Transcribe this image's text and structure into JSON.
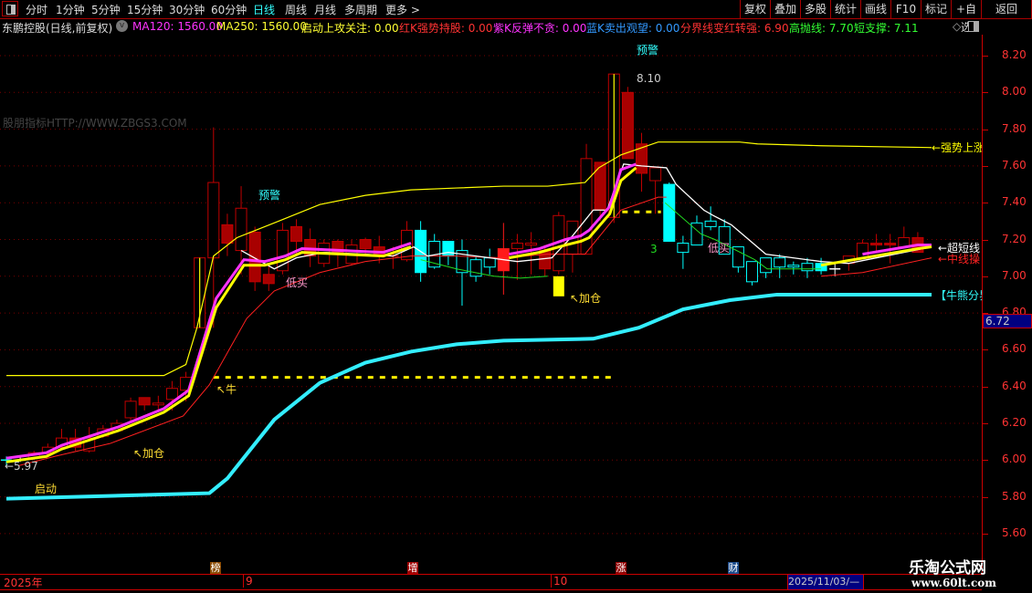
{
  "toolbar": {
    "tabs": [
      "分时",
      "1分钟",
      "5分钟",
      "15分钟",
      "30分钟",
      "60分钟",
      "日线",
      "周线",
      "月线",
      "多周期",
      "更多 >"
    ],
    "active_tab": "日线",
    "right_buttons": [
      "复权",
      "叠加",
      "多股",
      "统计",
      "画线",
      "F10",
      "标记",
      "+自选",
      "返回"
    ]
  },
  "infobar": {
    "title": "东鹏控股(日线,前复权)",
    "items": [
      {
        "label": "MA120: 1560.00",
        "color": "#ff33ff"
      },
      {
        "label": "MA250: 1560.00",
        "color": "#ffff33"
      },
      {
        "label": "启动上攻关注: 0.00",
        "color": "#ffff33"
      },
      {
        "label": "红K强势持股: 0.00",
        "color": "#ff3333"
      },
      {
        "label": "紫K反弹不贪: 0.00",
        "color": "#ff33ff"
      },
      {
        "label": "蓝K卖出观望: 0.00",
        "color": "#3399ff"
      },
      {
        "label": "分界线变红转强: 6.90",
        "color": "#ff3333"
      },
      {
        "label": "高抛线: 7.70",
        "color": "#33ff33"
      },
      {
        "label": "短支撑: 7.11",
        "color": "#33ff33"
      }
    ]
  },
  "watermark": "股朋指标HTTP://WWW.ZBGS3.COM",
  "y_axis": {
    "labels": [
      "8.20",
      "8.00",
      "7.80",
      "7.60",
      "7.40",
      "7.20",
      "7.00",
      "6.80",
      "6.60",
      "6.40",
      "6.20",
      "6.00",
      "5.80",
      "5.60"
    ],
    "current_price": "6.72"
  },
  "annotations": {
    "warn1": "预警",
    "warn2": "预警",
    "lowbuy1": "低买",
    "lowbuy2": "低买",
    "bull": "↖牛",
    "add1": "↖加仓",
    "add2": "↖加仓",
    "start": "启动",
    "count": "3",
    "high": "8.10",
    "low": "←5.97",
    "strong": "←强势上涨",
    "short": "←超短线",
    "mid": "←中线操",
    "divide": "【牛熊分界"
  },
  "time_axis": {
    "year": "2025年",
    "sep": "9",
    "oct": "10",
    "cursor_date": "2025/11/03/—"
  },
  "event_markers": [
    {
      "label": "榜",
      "color": "#8a4a00"
    },
    {
      "label": "增",
      "color": "#a00000"
    },
    {
      "label": "涨",
      "color": "#900000"
    },
    {
      "label": "财",
      "color": "#1a4a8a"
    }
  ],
  "logo": {
    "name": "乐淘公式网",
    "url": "www.60lt.com"
  },
  "chart_data": {
    "type": "candlestick",
    "y_range": [
      5.6,
      8.2
    ],
    "grid": true,
    "candles_ohlc": [
      [
        6.0,
        6.02,
        5.97,
        6.0,
        "c"
      ],
      [
        6.0,
        6.02,
        5.99,
        6.0,
        "w"
      ],
      [
        6.01,
        6.05,
        6.0,
        6.04,
        "r"
      ],
      [
        6.04,
        6.09,
        6.02,
        6.07,
        "r"
      ],
      [
        6.07,
        6.17,
        6.06,
        6.12,
        "r"
      ],
      [
        6.12,
        6.17,
        6.05,
        6.07,
        "r"
      ],
      [
        6.05,
        6.18,
        6.04,
        6.12,
        "r"
      ],
      [
        6.13,
        6.19,
        6.12,
        6.17,
        "r"
      ],
      [
        6.16,
        6.22,
        6.15,
        6.2,
        "r"
      ],
      [
        6.23,
        6.34,
        6.21,
        6.32,
        "r"
      ],
      [
        6.34,
        6.34,
        6.27,
        6.3,
        "r"
      ],
      [
        6.3,
        6.35,
        6.26,
        6.31,
        "r"
      ],
      [
        6.33,
        6.43,
        6.27,
        6.39,
        "r"
      ],
      [
        6.38,
        6.48,
        6.32,
        6.45,
        "r"
      ],
      [
        6.72,
        7.1,
        6.72,
        7.1,
        "r"
      ],
      [
        7.1,
        7.81,
        6.72,
        7.51,
        "r"
      ],
      [
        7.28,
        7.34,
        7.11,
        7.18,
        "r"
      ],
      [
        7.14,
        7.49,
        7.01,
        7.37,
        "r"
      ],
      [
        7.24,
        7.27,
        6.92,
        6.97,
        "r"
      ],
      [
        7.01,
        7.06,
        6.92,
        6.96,
        "r"
      ],
      [
        7.03,
        7.29,
        7.01,
        7.25,
        "r"
      ],
      [
        7.27,
        7.31,
        7.11,
        7.19,
        "r"
      ],
      [
        7.2,
        7.26,
        7.05,
        7.11,
        "r"
      ],
      [
        7.07,
        7.2,
        7.05,
        7.18,
        "r"
      ],
      [
        7.19,
        7.2,
        7.05,
        7.12,
        "r"
      ],
      [
        7.07,
        7.2,
        7.06,
        7.17,
        "r"
      ],
      [
        7.2,
        7.21,
        7.12,
        7.15,
        "r"
      ],
      [
        7.16,
        7.22,
        7.07,
        7.11,
        "r"
      ],
      [
        7.11,
        7.16,
        7.04,
        7.11,
        "r"
      ],
      [
        7.09,
        7.3,
        7.08,
        7.25,
        "r"
      ],
      [
        7.25,
        7.3,
        6.97,
        7.02,
        "c"
      ],
      [
        7.05,
        7.23,
        7.04,
        7.19,
        "c"
      ],
      [
        7.19,
        7.19,
        7.06,
        7.11,
        "c"
      ],
      [
        7.02,
        7.2,
        6.84,
        7.14,
        "c"
      ],
      [
        7.0,
        7.11,
        6.97,
        7.09,
        "c"
      ],
      [
        7.05,
        7.15,
        7.01,
        7.1,
        "c"
      ],
      [
        7.03,
        7.29,
        6.9,
        7.15,
        "R"
      ],
      [
        7.15,
        7.23,
        6.98,
        7.18,
        "r"
      ],
      [
        7.17,
        7.24,
        7.01,
        7.18,
        "r"
      ],
      [
        7.14,
        7.17,
        7.0,
        7.04,
        "r"
      ],
      [
        7.03,
        7.35,
        7.01,
        7.33,
        "r"
      ],
      [
        7.12,
        7.3,
        7.02,
        7.3,
        "r"
      ],
      [
        7.12,
        7.72,
        7.12,
        7.64,
        "r"
      ],
      [
        7.62,
        7.62,
        7.3,
        7.36,
        "r"
      ],
      [
        7.32,
        8.1,
        7.29,
        8.1,
        "r"
      ],
      [
        8.0,
        8.03,
        7.64,
        7.64,
        "r"
      ],
      [
        7.72,
        7.78,
        7.46,
        7.56,
        "r"
      ],
      [
        7.52,
        7.59,
        7.34,
        7.59,
        "r"
      ],
      [
        7.5,
        7.51,
        7.19,
        7.19,
        "c"
      ],
      [
        7.13,
        7.22,
        7.04,
        7.18,
        "c"
      ],
      [
        7.17,
        7.33,
        7.17,
        7.29,
        "c"
      ],
      [
        7.27,
        7.38,
        7.25,
        7.3,
        "c"
      ],
      [
        7.12,
        7.31,
        7.12,
        7.27,
        "c"
      ],
      [
        7.05,
        7.16,
        7.02,
        7.16,
        "c"
      ],
      [
        6.97,
        7.08,
        6.95,
        7.08,
        "c"
      ],
      [
        7.02,
        7.1,
        6.99,
        7.1,
        "c"
      ],
      [
        7.05,
        7.12,
        6.99,
        7.1,
        "c"
      ],
      [
        7.05,
        7.08,
        7.01,
        7.06,
        "c"
      ],
      [
        7.03,
        7.1,
        6.99,
        7.07,
        "c"
      ],
      [
        7.07,
        7.1,
        7.01,
        7.03,
        "c"
      ],
      [
        7.04,
        7.08,
        7.0,
        7.04,
        "w"
      ],
      [
        7.07,
        7.11,
        7.03,
        7.11,
        "r"
      ],
      [
        7.1,
        7.2,
        7.1,
        7.18,
        "r"
      ],
      [
        7.18,
        7.23,
        7.13,
        7.17,
        "r"
      ],
      [
        7.18,
        7.23,
        7.07,
        7.17,
        "r"
      ],
      [
        7.16,
        7.27,
        7.16,
        7.21,
        "r"
      ],
      [
        7.21,
        7.24,
        7.13,
        7.13,
        "r"
      ]
    ],
    "limit_up_bars": [
      14,
      44
    ],
    "add_position_bar": 40,
    "lines": [
      {
        "key": "bull_bear",
        "color": "#33eeff",
        "width": 4,
        "segments": [
          [
            [
              0,
              5.79
            ],
            [
              14.7,
              5.82
            ],
            [
              16,
              5.9
            ],
            [
              19.4,
              6.22
            ],
            [
              22.7,
              6.42
            ],
            [
              26,
              6.53
            ],
            [
              29.3,
              6.59
            ],
            [
              32.6,
              6.63
            ],
            [
              36,
              6.65
            ],
            [
              42.5,
              6.66
            ],
            [
              45.8,
              6.72
            ],
            [
              49,
              6.82
            ],
            [
              52.4,
              6.87
            ],
            [
              55.8,
              6.9
            ],
            [
              67,
              6.9
            ]
          ]
        ]
      },
      {
        "key": "strong_up",
        "color": "#ffff00",
        "width": 1.2,
        "segments": [
          [
            [
              0,
              6.46
            ],
            [
              11.4,
              6.46
            ],
            [
              13,
              6.52
            ],
            [
              13.8,
              6.72
            ],
            [
              15,
              7.11
            ],
            [
              16.7,
              7.21
            ],
            [
              19.4,
              7.29
            ],
            [
              22.7,
              7.39
            ],
            [
              26,
              7.44
            ],
            [
              29.3,
              7.47
            ],
            [
              32.6,
              7.48
            ],
            [
              36,
              7.49
            ],
            [
              39.2,
              7.49
            ],
            [
              41.9,
              7.51
            ],
            [
              42.9,
              7.59
            ],
            [
              44.5,
              7.66
            ],
            [
              47.2,
              7.73
            ],
            [
              53.1,
              7.73
            ],
            [
              54.4,
              7.72
            ],
            [
              59,
              7.71
            ],
            [
              67,
              7.7
            ]
          ]
        ]
      },
      {
        "key": "mid_line",
        "color": "#ff2020",
        "width": 1,
        "segments": [
          [
            [
              0.9,
              5.97
            ],
            [
              3.5,
              6.02
            ],
            [
              7.5,
              6.09
            ],
            [
              12.8,
              6.24
            ],
            [
              14.7,
              6.41
            ],
            [
              17.4,
              6.77
            ],
            [
              19.4,
              6.92
            ],
            [
              22.7,
              7.02
            ],
            [
              26,
              7.08
            ],
            [
              29.3,
              7.11
            ],
            [
              32.6,
              7.11
            ],
            [
              36,
              7.1
            ],
            [
              39.2,
              7.12
            ],
            [
              41.9,
              7.12
            ],
            [
              44.5,
              7.36
            ],
            [
              47.2,
              7.43
            ],
            [
              47.8,
              7.43
            ]
          ],
          [
            [
              59,
              7.0
            ],
            [
              62,
              7.02
            ],
            [
              67,
              7.1
            ]
          ]
        ]
      },
      {
        "key": "green_line",
        "color": "#22dd22",
        "width": 1,
        "segments": [
          [
            [
              30,
              7.09
            ],
            [
              32.6,
              7.04
            ],
            [
              35.3,
              7.0
            ],
            [
              37.2,
              6.99
            ],
            [
              39.2,
              7.0
            ]
          ],
          [
            [
              47.7,
              7.4
            ],
            [
              50.3,
              7.23
            ],
            [
              51.3,
              7.2
            ],
            [
              54.2,
              7.09
            ],
            [
              55.1,
              7.04
            ],
            [
              59,
              7.04
            ]
          ]
        ]
      },
      {
        "key": "white_line",
        "color": "#ffffff",
        "width": 1.3,
        "segments": [
          [
            [
              17,
              7.14
            ],
            [
              19.4,
              7.04
            ],
            [
              21,
              7.1
            ],
            [
              23,
              7.13
            ],
            [
              26,
              7.12
            ],
            [
              28,
              7.11
            ],
            [
              29.5,
              7.16
            ],
            [
              30.5,
              7.11
            ],
            [
              32,
              7.13
            ],
            [
              35,
              7.1
            ],
            [
              37,
              7.08
            ],
            [
              39.5,
              7.1
            ],
            [
              41,
              7.22
            ],
            [
              42.5,
              7.36
            ],
            [
              43.5,
              7.36
            ],
            [
              44.7,
              7.61
            ],
            [
              46,
              7.6
            ],
            [
              47.8,
              7.59
            ],
            [
              48.5,
              7.5
            ],
            [
              50.5,
              7.36
            ],
            [
              51.2,
              7.33
            ],
            [
              52.5,
              7.28
            ],
            [
              55,
              7.12
            ],
            [
              59,
              7.08
            ],
            [
              61,
              7.07
            ],
            [
              67,
              7.16
            ]
          ]
        ]
      },
      {
        "key": "magenta_line",
        "color": "#ff33ff",
        "width": 3,
        "segments": [
          [
            [
              0,
              6.01
            ],
            [
              2.9,
              6.04
            ],
            [
              4,
              6.08
            ],
            [
              8.1,
              6.18
            ],
            [
              11.4,
              6.28
            ],
            [
              13.2,
              6.38
            ],
            [
              15.2,
              6.88
            ],
            [
              17.2,
              7.09
            ],
            [
              18.7,
              7.08
            ],
            [
              20.2,
              7.11
            ],
            [
              21.4,
              7.15
            ],
            [
              27.3,
              7.13
            ],
            [
              29.3,
              7.18
            ]
          ],
          [
            [
              36.4,
              7.12
            ],
            [
              38.6,
              7.15
            ],
            [
              40.5,
              7.2
            ],
            [
              41.6,
              7.22
            ],
            [
              42.2,
              7.25
            ],
            [
              43.7,
              7.38
            ],
            [
              44.5,
              7.58
            ],
            [
              45.6,
              7.61
            ]
          ],
          [
            [
              62,
              7.12
            ],
            [
              66,
              7.17
            ],
            [
              67,
              7.17
            ]
          ]
        ]
      },
      {
        "key": "short_ma",
        "color": "#ffff00",
        "width": 3,
        "segments": [
          [
            [
              0,
              5.99
            ],
            [
              2.9,
              6.02
            ],
            [
              4,
              6.06
            ],
            [
              8.1,
              6.16
            ],
            [
              11.4,
              6.26
            ],
            [
              13.2,
              6.35
            ],
            [
              15.2,
              6.83
            ],
            [
              17.2,
              7.06
            ],
            [
              18.7,
              7.06
            ],
            [
              20.2,
              7.09
            ],
            [
              21.4,
              7.13
            ],
            [
              27.3,
              7.11
            ],
            [
              29.3,
              7.16
            ]
          ],
          [
            [
              36.4,
              7.1
            ],
            [
              38.6,
              7.13
            ],
            [
              40.5,
              7.17
            ],
            [
              41.6,
              7.19
            ],
            [
              42.2,
              7.21
            ],
            [
              43.7,
              7.34
            ],
            [
              44.5,
              7.52
            ],
            [
              45.6,
              7.59
            ]
          ],
          [
            [
              59,
              7.06
            ],
            [
              66,
              7.15
            ],
            [
              67,
              7.16
            ]
          ]
        ]
      }
    ],
    "dashed_levels": [
      {
        "price": 6.45,
        "from": 15,
        "to": 44,
        "color": "#ffee00"
      },
      {
        "price": 7.35,
        "from": 44.6,
        "to": 47.4,
        "color": "#ffee00"
      }
    ]
  }
}
